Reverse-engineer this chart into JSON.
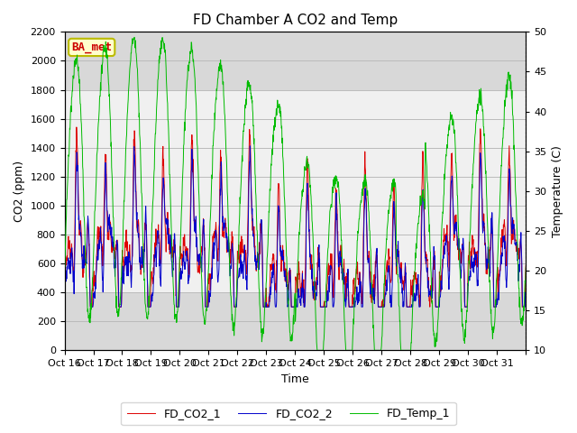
{
  "title": "FD Chamber A CO2 and Temp",
  "xlabel": "Time",
  "ylabel_left": "CO2 (ppm)",
  "ylabel_right": "Temperature (C)",
  "ylim_left": [
    0,
    2200
  ],
  "ylim_right": [
    10,
    50
  ],
  "yticks_left": [
    0,
    200,
    400,
    600,
    800,
    1000,
    1200,
    1400,
    1600,
    1800,
    2000,
    2200
  ],
  "yticks_right": [
    10,
    15,
    20,
    25,
    30,
    35,
    40,
    45,
    50
  ],
  "xtick_positions": [
    0,
    1,
    2,
    3,
    4,
    5,
    6,
    7,
    8,
    9,
    10,
    11,
    12,
    13,
    14,
    15,
    16
  ],
  "xtick_labels": [
    "Oct 16",
    "Oct 17",
    "Oct 18",
    "Oct 19",
    "Oct 20",
    "Oct 21",
    "Oct 22",
    "Oct 23",
    "Oct 24",
    "Oct 25",
    "Oct 26",
    "Oct 27",
    "Oct 28",
    "Oct 29",
    "Oct 30",
    "Oct 31",
    ""
  ],
  "legend_labels": [
    "FD_CO2_1",
    "FD_CO2_2",
    "FD_Temp_1"
  ],
  "co2_color_1": "#dd0000",
  "co2_color_2": "#0000cc",
  "temp_color": "#00bb00",
  "watermark_text": "BA_met",
  "watermark_bg": "#ffffcc",
  "watermark_border": "#bbbb00",
  "bg_outer": "#d8d8d8",
  "bg_inner": "#f0f0f0",
  "grid_color": "#bbbbbb",
  "title_fontsize": 11,
  "axis_fontsize": 9,
  "tick_fontsize": 8,
  "legend_fontsize": 9,
  "num_points": 1500,
  "days": 16
}
